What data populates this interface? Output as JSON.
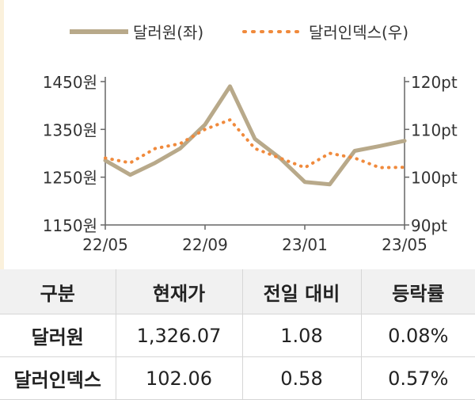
{
  "chart_data": {
    "type": "line",
    "legend": {
      "placement": "top-center"
    },
    "series": [
      {
        "name": "달러원(좌)",
        "axis": "left",
        "style": "solid",
        "color": "#b8a98a",
        "x": [
          "22/05",
          "22/06",
          "22/07",
          "22/08",
          "22/09",
          "22/10",
          "22/11",
          "22/12",
          "23/01",
          "23/02",
          "23/03",
          "23/04",
          "23/05"
        ],
        "values": [
          1285,
          1255,
          1280,
          1310,
          1360,
          1440,
          1330,
          1290,
          1240,
          1235,
          1305,
          1315,
          1326.07
        ]
      },
      {
        "name": "달러인덱스(우)",
        "axis": "right",
        "style": "dotted",
        "color": "#f08a3c",
        "x": [
          "22/05",
          "22/06",
          "22/07",
          "22/08",
          "22/09",
          "22/10",
          "22/11",
          "22/12",
          "23/01",
          "23/02",
          "23/03",
          "23/04",
          "23/05"
        ],
        "values": [
          104,
          103,
          106,
          107,
          110,
          112,
          106,
          104,
          102,
          105,
          104,
          102,
          102.06
        ]
      }
    ],
    "x_ticks": [
      "22/05",
      "22/09",
      "23/01",
      "23/05"
    ],
    "y_left": {
      "ticks": [
        "1450원",
        "1350원",
        "1250원",
        "1150원"
      ],
      "tick_values": [
        1450,
        1350,
        1250,
        1150
      ],
      "ylim": [
        1150,
        1450
      ]
    },
    "y_right": {
      "ticks": [
        "120pt",
        "110pt",
        "100pt",
        "90pt"
      ],
      "tick_values": [
        120,
        110,
        100,
        90
      ],
      "ylim": [
        90,
        120
      ]
    },
    "grid": false
  },
  "table": {
    "headers": [
      "구분",
      "현재가",
      "전일 대비",
      "등락률"
    ],
    "rows": [
      [
        "달러원",
        "1,326.07",
        "1.08",
        "0.08%"
      ],
      [
        "달러인덱스",
        "102.06",
        "0.58",
        "0.57%"
      ]
    ]
  }
}
